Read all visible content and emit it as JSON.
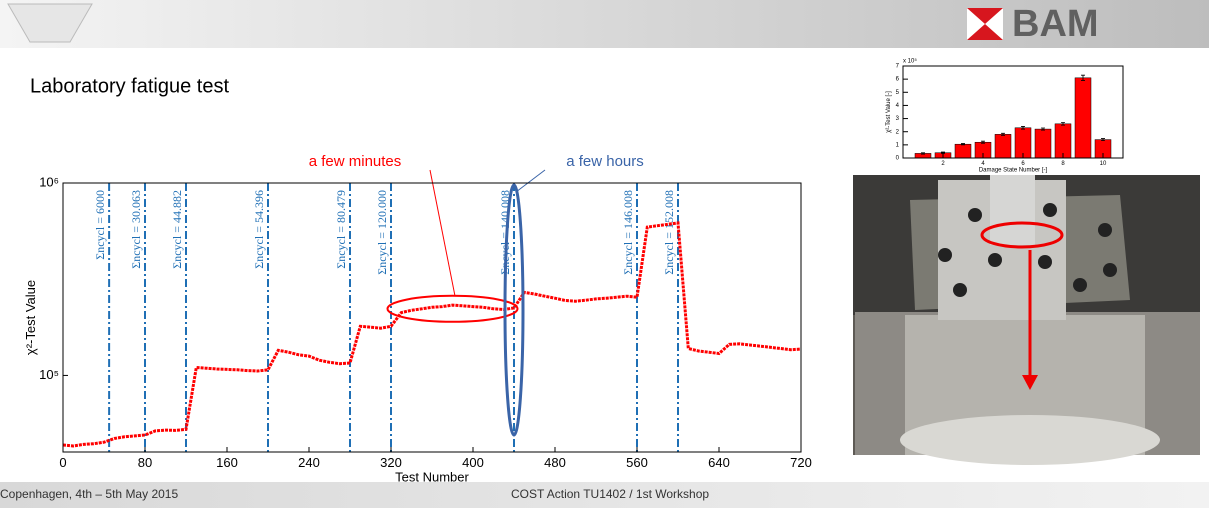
{
  "header": {
    "title": "Laboratory fatigue test",
    "logo": "BAM"
  },
  "footer": {
    "left": "Copenhagen, 4th – 5th May 2015",
    "center": "COST Action TU1402 / 1st Workshop"
  },
  "chart_data": [
    {
      "type": "line",
      "log_y": true,
      "xlabel": "Test Number",
      "ylabel": "χ²-Test Value",
      "xlim": [
        0,
        720
      ],
      "xticks": [
        0,
        80,
        160,
        240,
        320,
        400,
        480,
        560,
        640,
        720
      ],
      "ylim": [
        40000,
        1000000
      ],
      "yticks": [
        {
          "value": 100000,
          "label": "10⁵"
        },
        {
          "value": 1000000,
          "label": "10⁶"
        }
      ],
      "series": [
        {
          "color": "#ff0000",
          "x": [
            0,
            10,
            20,
            30,
            40,
            50,
            60,
            70,
            80,
            90,
            100,
            110,
            120,
            130,
            140,
            150,
            160,
            170,
            180,
            190,
            200,
            210,
            220,
            230,
            240,
            250,
            260,
            270,
            280,
            290,
            300,
            310,
            320,
            330,
            340,
            350,
            360,
            370,
            380,
            390,
            400,
            410,
            420,
            430,
            440,
            450,
            460,
            470,
            480,
            490,
            500,
            510,
            520,
            530,
            540,
            550,
            560,
            570,
            580,
            590,
            600,
            610,
            620,
            630,
            640,
            650,
            660,
            670,
            680,
            690,
            700,
            710,
            720
          ],
          "values": [
            43500,
            43000,
            43800,
            44200,
            45000,
            47000,
            48000,
            48500,
            49000,
            51500,
            52000,
            51800,
            52500,
            110000,
            109000,
            108000,
            107500,
            107000,
            106000,
            105500,
            107000,
            135000,
            132000,
            128000,
            126000,
            120000,
            117000,
            115000,
            116000,
            180000,
            178000,
            176000,
            180000,
            212000,
            218000,
            222000,
            226000,
            228000,
            232000,
            230000,
            228000,
            226000,
            222000,
            220000,
            224000,
            270000,
            265000,
            258000,
            252000,
            245000,
            243000,
            246000,
            250000,
            252000,
            255000,
            258000,
            255000,
            590000,
            600000,
            610000,
            620000,
            138000,
            134000,
            132000,
            130000,
            145000,
            146000,
            144000,
            142000,
            140000,
            138000,
            136000,
            137000
          ]
        }
      ],
      "vlines": [
        {
          "value": 45,
          "label": "Σncycl = 6000"
        },
        {
          "value": 80,
          "label": "Σncycl = 30.063"
        },
        {
          "value": 120,
          "label": "Σncycl = 44.882"
        },
        {
          "value": 200,
          "label": "Σncycl = 54.396"
        },
        {
          "value": 280,
          "label": "Σncycl = 80.479"
        },
        {
          "value": 320,
          "label": "Σncycl = 120.000"
        },
        {
          "value": 440,
          "label": "Σncycl = 140.008"
        },
        {
          "value": 560,
          "label": "Σncycl = 146.008"
        },
        {
          "value": 600,
          "label": "Σncycl = 152.008"
        }
      ],
      "vline_color": "#1f6fb5",
      "callouts": [
        {
          "text": "a few minutes",
          "color": "#ff0000"
        },
        {
          "text": "a few hours",
          "color": "#3a64a8"
        }
      ]
    },
    {
      "type": "bar",
      "xlabel": "Damage State Number [-]",
      "ylabel": "χ²-Test Value [-]",
      "y_multiplier": "x 10⁵",
      "x": [
        1,
        2,
        3,
        4,
        5,
        6,
        7,
        8,
        9,
        10
      ],
      "values": [
        0.35,
        0.4,
        1.05,
        1.2,
        1.8,
        2.3,
        2.2,
        2.6,
        6.1,
        1.4
      ],
      "errors": [
        0.05,
        0.05,
        0.05,
        0.08,
        0.08,
        0.1,
        0.08,
        0.1,
        0.2,
        0.08
      ],
      "color": "#ff0000",
      "xlim": [
        0,
        11
      ],
      "xticks": [
        2,
        4,
        6,
        8,
        10
      ],
      "ylim": [
        0,
        7
      ],
      "yticks": [
        0,
        1,
        2,
        3,
        4,
        5,
        6,
        7
      ]
    }
  ]
}
